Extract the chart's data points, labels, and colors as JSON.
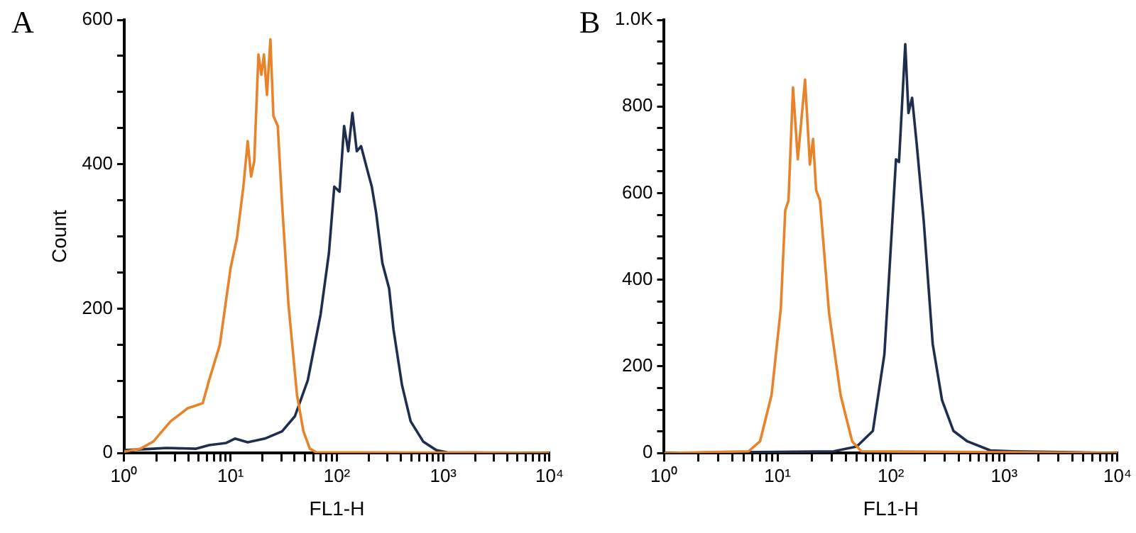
{
  "chart_data": [
    {
      "type": "line",
      "title": "A",
      "xlabel": "FL1-H",
      "ylabel": "Count",
      "log": "x",
      "grid": false,
      "legend": false,
      "marker": "none",
      "line_style": "solid",
      "xlim": [
        1,
        10000
      ],
      "xticks": [
        {
          "value": 1,
          "label": "10⁰"
        },
        {
          "value": 2,
          "label": null
        },
        {
          "value": 3,
          "label": null
        },
        {
          "value": 4,
          "label": null
        },
        {
          "value": 5,
          "label": null
        },
        {
          "value": 6,
          "label": null
        },
        {
          "value": 7,
          "label": null
        },
        {
          "value": 8,
          "label": null
        },
        {
          "value": 9,
          "label": null
        },
        {
          "value": 10,
          "label": "10¹"
        },
        {
          "value": 20,
          "label": null
        },
        {
          "value": 30,
          "label": null
        },
        {
          "value": 40,
          "label": null
        },
        {
          "value": 50,
          "label": null
        },
        {
          "value": 60,
          "label": null
        },
        {
          "value": 70,
          "label": null
        },
        {
          "value": 80,
          "label": null
        },
        {
          "value": 90,
          "label": null
        },
        {
          "value": 100,
          "label": "10²"
        },
        {
          "value": 200,
          "label": null
        },
        {
          "value": 300,
          "label": null
        },
        {
          "value": 400,
          "label": null
        },
        {
          "value": 500,
          "label": null
        },
        {
          "value": 600,
          "label": null
        },
        {
          "value": 700,
          "label": null
        },
        {
          "value": 800,
          "label": null
        },
        {
          "value": 900,
          "label": null
        },
        {
          "value": 1000,
          "label": "10³"
        },
        {
          "value": 2000,
          "label": null
        },
        {
          "value": 3000,
          "label": null
        },
        {
          "value": 4000,
          "label": null
        },
        {
          "value": 5000,
          "label": null
        },
        {
          "value": 6000,
          "label": null
        },
        {
          "value": 7000,
          "label": null
        },
        {
          "value": 8000,
          "label": null
        },
        {
          "value": 9000,
          "label": null
        },
        {
          "value": 10000,
          "label": "10⁴"
        }
      ],
      "ylim": [
        0,
        600
      ],
      "yticks": [
        0,
        {
          "value": 50,
          "label": null
        },
        {
          "value": 100,
          "label": null
        },
        {
          "value": 150,
          "label": null
        },
        200,
        {
          "value": 250,
          "label": null
        },
        {
          "value": 300,
          "label": null
        },
        {
          "value": 350,
          "label": null
        },
        400,
        {
          "value": 450,
          "label": null
        },
        {
          "value": 500,
          "label": null
        },
        {
          "value": 550,
          "label": null
        },
        600
      ],
      "series": [
        {
          "color": "#e8832a",
          "x": [
            1,
            1.42,
            1.88,
            2.73,
            3.95,
            4.76,
            5.47,
            6.29,
            7.93,
            10,
            11.5,
            13.2,
            14.5,
            15.6,
            16.7,
            18.3,
            19.5,
            20.6,
            22,
            23.7,
            25.3,
            27.8,
            30.5,
            35,
            42.2,
            48.5,
            55.7,
            64,
            10000
          ],
          "values": [
            2,
            6,
            16,
            44,
            62,
            66,
            69,
            101,
            150,
            256,
            298,
            369,
            432,
            383,
            404,
            552,
            524,
            552,
            496,
            573,
            467,
            453,
            346,
            207,
            80,
            30,
            6,
            1,
            0
          ]
        },
        {
          "color": "#1f2d4f",
          "x": [
            1,
            1.88,
            2.49,
            4.76,
            6.29,
            9.1,
            11,
            14.5,
            21,
            30.5,
            40.3,
            53.3,
            70.3,
            84.2,
            94.5,
            106,
            117,
            128,
            140,
            154,
            169,
            195,
            213,
            234,
            268,
            310,
            341,
            410,
            494,
            648,
            862,
            1088,
            10000
          ],
          "values": [
            4,
            6,
            7,
            6,
            11,
            14,
            20,
            15,
            20,
            30,
            51,
            101,
            192,
            277,
            369,
            362,
            453,
            418,
            471,
            418,
            425,
            390,
            369,
            333,
            263,
            228,
            171,
            94,
            44,
            16,
            4,
            1,
            0
          ]
        }
      ]
    },
    {
      "type": "line",
      "title": "B",
      "xlabel": "FL1-H",
      "log": "x",
      "grid": false,
      "legend": false,
      "marker": "none",
      "line_style": "solid",
      "xlim": [
        1,
        10000
      ],
      "xticks": [
        {
          "value": 1,
          "label": "10⁰"
        },
        {
          "value": 2,
          "label": null
        },
        {
          "value": 3,
          "label": null
        },
        {
          "value": 4,
          "label": null
        },
        {
          "value": 5,
          "label": null
        },
        {
          "value": 6,
          "label": null
        },
        {
          "value": 7,
          "label": null
        },
        {
          "value": 8,
          "label": null
        },
        {
          "value": 9,
          "label": null
        },
        {
          "value": 10,
          "label": "10¹"
        },
        {
          "value": 20,
          "label": null
        },
        {
          "value": 30,
          "label": null
        },
        {
          "value": 40,
          "label": null
        },
        {
          "value": 50,
          "label": null
        },
        {
          "value": 60,
          "label": null
        },
        {
          "value": 70,
          "label": null
        },
        {
          "value": 80,
          "label": null
        },
        {
          "value": 90,
          "label": null
        },
        {
          "value": 100,
          "label": "10²"
        },
        {
          "value": 200,
          "label": null
        },
        {
          "value": 300,
          "label": null
        },
        {
          "value": 400,
          "label": null
        },
        {
          "value": 500,
          "label": null
        },
        {
          "value": 600,
          "label": null
        },
        {
          "value": 700,
          "label": null
        },
        {
          "value": 800,
          "label": null
        },
        {
          "value": 900,
          "label": null
        },
        {
          "value": 1000,
          "label": "10³"
        },
        {
          "value": 2000,
          "label": null
        },
        {
          "value": 3000,
          "label": null
        },
        {
          "value": 4000,
          "label": null
        },
        {
          "value": 5000,
          "label": null
        },
        {
          "value": 6000,
          "label": null
        },
        {
          "value": 7000,
          "label": null
        },
        {
          "value": 8000,
          "label": null
        },
        {
          "value": 9000,
          "label": null
        },
        {
          "value": 10000,
          "label": "10⁴"
        }
      ],
      "ylim": [
        0,
        1000
      ],
      "yticks": [
        0,
        {
          "value": 50,
          "label": null
        },
        {
          "value": 100,
          "label": null
        },
        {
          "value": 150,
          "label": null
        },
        200,
        {
          "value": 250,
          "label": null
        },
        {
          "value": 300,
          "label": null
        },
        {
          "value": 350,
          "label": null
        },
        400,
        {
          "value": 450,
          "label": null
        },
        {
          "value": 500,
          "label": null
        },
        {
          "value": 550,
          "label": null
        },
        600,
        {
          "value": 650,
          "label": null
        },
        {
          "value": 700,
          "label": null
        },
        {
          "value": 750,
          "label": null
        },
        800,
        {
          "value": 850,
          "label": null
        },
        {
          "value": 900,
          "label": null
        },
        {
          "value": 950,
          "label": null
        },
        {
          "value": 1000,
          "label": "1.0K"
        }
      ],
      "series": [
        {
          "color": "#e8832a",
          "x": [
            1,
            5.55,
            7.01,
            8.86,
            10.7,
            11.7,
            12.5,
            13.7,
            15.1,
            17.5,
            19.3,
            20.6,
            21.9,
            23.7,
            28.5,
            36,
            45.6,
            54.9,
            10000
          ],
          "values": [
            0,
            4,
            27,
            134,
            335,
            560,
            583,
            844,
            678,
            862,
            666,
            725,
            607,
            583,
            323,
            134,
            27,
            4,
            0
          ]
        },
        {
          "color": "#1f2d4f",
          "x": [
            1,
            31.3,
            50,
            69.4,
            87.7,
            96.4,
            111,
            118,
            134,
            143,
            154,
            169,
            195,
            234,
            283,
            357,
            473,
            755,
            1205,
            10000
          ],
          "values": [
            0,
            4,
            15,
            51,
            228,
            406,
            678,
            672,
            944,
            785,
            820,
            714,
            536,
            252,
            122,
            51,
            27,
            6,
            4,
            0
          ]
        }
      ]
    }
  ]
}
